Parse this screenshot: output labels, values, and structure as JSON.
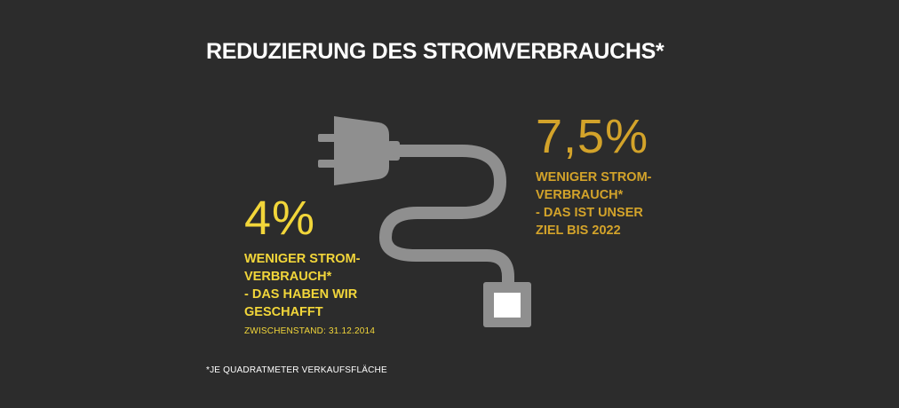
{
  "title": "REDUZIERUNG DES STROMVERBRAUCHS*",
  "colors": {
    "background": "#2c2c2c",
    "current_value": "#f2d63a",
    "target_value": "#d3a32a",
    "graphic": "#8f8f8f",
    "socket_inner": "#ffffff"
  },
  "current": {
    "value": "4%",
    "lines": [
      "WENIGER STROM-",
      "VERBRAUCH*",
      "- DAS HABEN WIR",
      "GESCHAFFT"
    ],
    "note": "ZWISCHENSTAND: 31.12.2014"
  },
  "target": {
    "value": "7,5%",
    "lines": [
      "WENIGER STROM-",
      "VERBRAUCH*",
      "- DAS IST UNSER",
      "ZIEL BIS 2022"
    ]
  },
  "footnote": "*JE QUADRATMETER VERKAUFSFLÄCHE",
  "icons": [
    "plug-icon",
    "cable-icon",
    "socket-icon"
  ]
}
